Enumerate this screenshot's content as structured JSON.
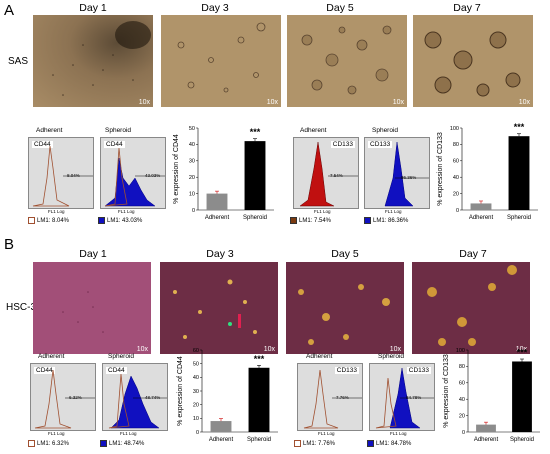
{
  "panel_a": {
    "letter": "A",
    "row_label": "SAS",
    "days": [
      "Day 1",
      "Day 3",
      "Day 5",
      "Day 7"
    ],
    "magnification": "10x",
    "cd44": {
      "adherent_title": "Adherent",
      "spheroid_title": "Spheroid",
      "marker": "CD44",
      "adherent_gate": "8.04%",
      "spheroid_gate": "43.03%",
      "xaxis": "FL1 Log",
      "yaxis": "Events",
      "adherent_legend": "LM1:  8.04%",
      "spheroid_legend": "LM1:  43.03%"
    },
    "cd133": {
      "adherent_title": "Adherent",
      "spheroid_title": "Spheroid",
      "marker": "CD133",
      "adherent_gate": "7.54%",
      "spheroid_gate": "86.36%",
      "xaxis": "FL1 Log",
      "yaxis": "Events",
      "adherent_legend": "LM1:  7.54%",
      "spheroid_legend": "LM1:  86.36%"
    }
  },
  "panel_b": {
    "letter": "B",
    "row_label": "HSC-3",
    "days": [
      "Day 1",
      "Day 3",
      "Day 5",
      "Day 7"
    ],
    "magnification": "10x",
    "cd44": {
      "adherent_title": "Adherent",
      "spheroid_title": "Spheroid",
      "marker": "CD44",
      "adherent_gate": "6.32%",
      "spheroid_gate": "48.74%",
      "xaxis": "FL1 Log",
      "yaxis": "Events",
      "adherent_legend": "LM1:  6.32%",
      "spheroid_legend": "LM1:  48.74%"
    },
    "cd133": {
      "adherent_title": "Adherent",
      "spheroid_title": "Spheroid",
      "marker": "CD133",
      "adherent_gate": "7.76%",
      "spheroid_gate": "84.78%",
      "xaxis": "FL1 Log",
      "yaxis": "Events",
      "adherent_legend": "LM1:  7.76%",
      "spheroid_legend": "LM1:  84.78%"
    }
  },
  "chart_data": [
    {
      "type": "bar",
      "categories": [
        "Adherent",
        "Spheroid"
      ],
      "values": [
        10,
        42
      ],
      "ylabel": "% expression of CD44",
      "ylim": [
        0,
        50
      ],
      "yticks": [
        0,
        10,
        20,
        30,
        40,
        50
      ],
      "annotation": "***",
      "colors": [
        "#8c8c8c",
        "#000000"
      ]
    },
    {
      "type": "bar",
      "categories": [
        "Adherent",
        "Spheroid"
      ],
      "values": [
        8,
        90
      ],
      "ylabel": "% expression of CD133",
      "ylim": [
        0,
        100
      ],
      "yticks": [
        0,
        20,
        40,
        60,
        80,
        100
      ],
      "annotation": "***",
      "colors": [
        "#8c8c8c",
        "#000000"
      ]
    },
    {
      "type": "bar",
      "categories": [
        "Adherent",
        "Spheroid"
      ],
      "values": [
        8,
        47
      ],
      "ylabel": "% expression of CD44",
      "ylim": [
        0,
        60
      ],
      "yticks": [
        0,
        10,
        20,
        30,
        40,
        50,
        60
      ],
      "annotation": "***",
      "colors": [
        "#8c8c8c",
        "#000000"
      ]
    },
    {
      "type": "bar",
      "categories": [
        "Adherent",
        "Spheroid"
      ],
      "values": [
        9,
        86
      ],
      "ylabel": "% expression of CD133",
      "ylim": [
        0,
        100
      ],
      "yticks": [
        0,
        20,
        40,
        60,
        80,
        100
      ],
      "annotation": "***",
      "colors": [
        "#8c8c8c",
        "#000000"
      ]
    }
  ]
}
